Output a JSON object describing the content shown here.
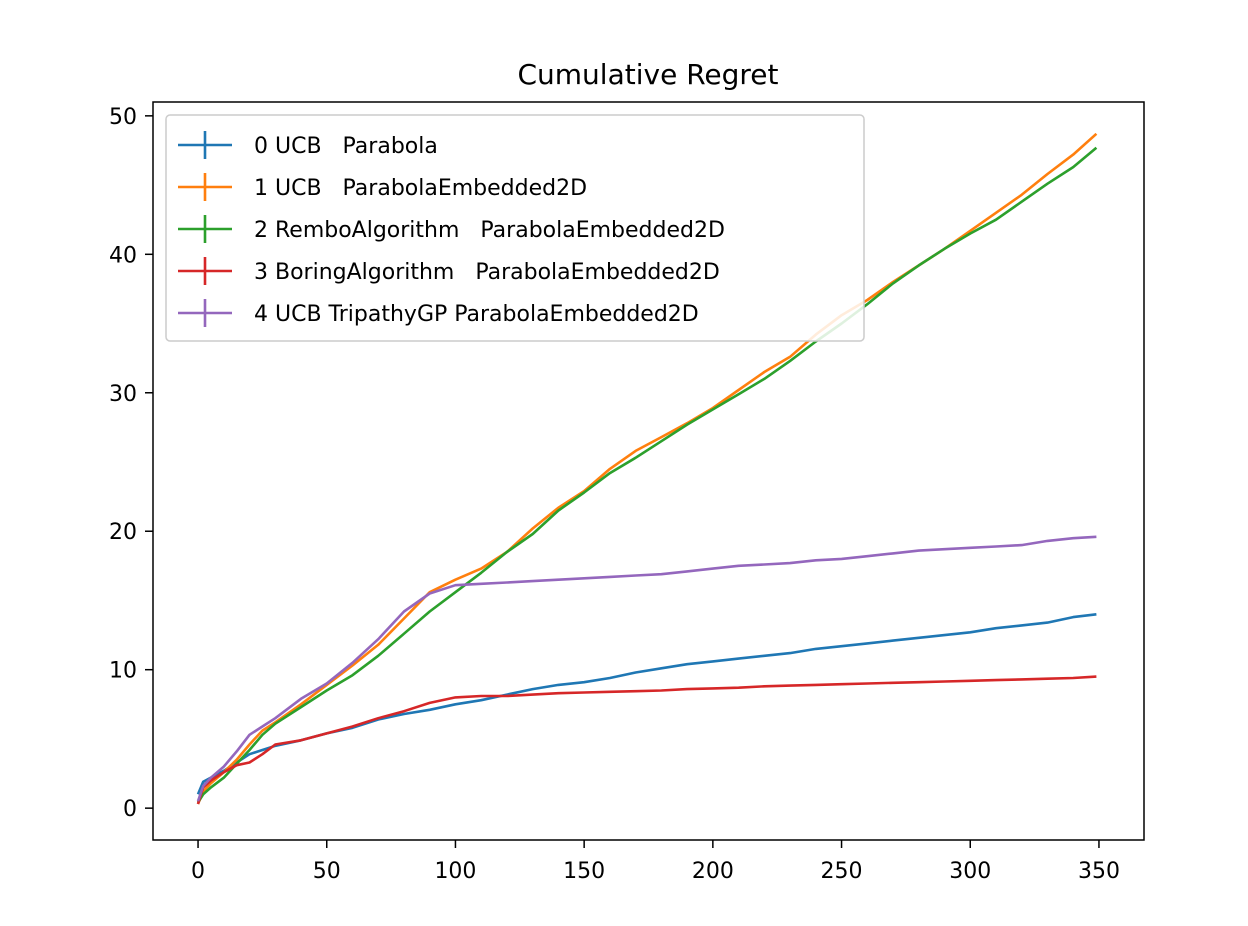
{
  "chart_data": {
    "type": "line",
    "title": "Cumulative Regret",
    "xlabel": "",
    "ylabel": "",
    "xlim": [
      -17.5,
      367.5
    ],
    "ylim": [
      -2.3,
      51.0
    ],
    "xticks": [
      0,
      50,
      100,
      150,
      200,
      250,
      300,
      350
    ],
    "yticks": [
      0,
      10,
      20,
      30,
      40,
      50
    ],
    "grid": false,
    "legend_position": "top-left",
    "series": [
      {
        "name": "0 UCB   Parabola",
        "color": "#1f77b4",
        "x": [
          0,
          2,
          5,
          10,
          15,
          20,
          25,
          30,
          40,
          50,
          60,
          70,
          80,
          90,
          100,
          110,
          120,
          130,
          140,
          150,
          160,
          170,
          180,
          190,
          200,
          210,
          220,
          230,
          240,
          250,
          260,
          270,
          280,
          290,
          300,
          310,
          320,
          330,
          340,
          349
        ],
        "y": [
          1.0,
          1.9,
          2.2,
          2.7,
          3.3,
          3.9,
          4.2,
          4.5,
          4.9,
          5.4,
          5.8,
          6.4,
          6.8,
          7.1,
          7.5,
          7.8,
          8.2,
          8.6,
          8.9,
          9.1,
          9.4,
          9.8,
          10.1,
          10.4,
          10.6,
          10.8,
          11.0,
          11.2,
          11.5,
          11.7,
          11.9,
          12.1,
          12.3,
          12.5,
          12.7,
          13.0,
          13.2,
          13.4,
          13.8,
          14.0
        ]
      },
      {
        "name": "1 UCB   ParabolaEmbedded2D",
        "color": "#ff7f0e",
        "x": [
          0,
          2,
          5,
          10,
          15,
          20,
          25,
          30,
          40,
          50,
          60,
          70,
          80,
          90,
          100,
          110,
          120,
          130,
          140,
          150,
          160,
          170,
          180,
          190,
          200,
          210,
          220,
          230,
          240,
          250,
          260,
          270,
          280,
          290,
          300,
          310,
          320,
          330,
          340,
          349
        ],
        "y": [
          0.3,
          1.2,
          1.8,
          2.6,
          3.5,
          4.6,
          5.6,
          6.2,
          7.5,
          8.9,
          10.3,
          11.8,
          13.7,
          15.6,
          16.5,
          17.3,
          18.5,
          20.2,
          21.7,
          22.9,
          24.5,
          25.8,
          26.8,
          27.8,
          28.9,
          30.2,
          31.5,
          32.6,
          34.2,
          35.6,
          36.7,
          38.0,
          39.2,
          40.4,
          41.7,
          43.0,
          44.3,
          45.8,
          47.2,
          48.7
        ]
      },
      {
        "name": "2 RemboAlgorithm   ParabolaEmbedded2D",
        "color": "#2ca02c",
        "x": [
          0,
          2,
          5,
          10,
          15,
          20,
          25,
          30,
          40,
          50,
          60,
          70,
          80,
          90,
          100,
          110,
          120,
          130,
          140,
          150,
          160,
          170,
          180,
          190,
          200,
          210,
          220,
          230,
          240,
          250,
          260,
          270,
          280,
          290,
          300,
          310,
          320,
          330,
          340,
          349
        ],
        "y": [
          0.4,
          1.0,
          1.5,
          2.2,
          3.2,
          4.2,
          5.3,
          6.1,
          7.3,
          8.5,
          9.6,
          11.0,
          12.6,
          14.2,
          15.6,
          17.0,
          18.5,
          19.8,
          21.5,
          22.8,
          24.2,
          25.3,
          26.5,
          27.7,
          28.8,
          29.9,
          31.0,
          32.3,
          33.7,
          35.0,
          36.4,
          37.9,
          39.2,
          40.4,
          41.5,
          42.5,
          43.8,
          45.1,
          46.3,
          47.7
        ]
      },
      {
        "name": "3 BoringAlgorithm   ParabolaEmbedded2D",
        "color": "#d62728",
        "x": [
          0,
          2,
          5,
          10,
          15,
          20,
          25,
          30,
          40,
          50,
          60,
          70,
          80,
          90,
          100,
          110,
          120,
          130,
          140,
          150,
          160,
          170,
          180,
          190,
          200,
          210,
          220,
          230,
          240,
          250,
          260,
          270,
          280,
          290,
          300,
          310,
          320,
          330,
          340,
          349
        ],
        "y": [
          0.3,
          1.5,
          2.0,
          2.6,
          3.1,
          3.3,
          3.9,
          4.6,
          4.9,
          5.4,
          5.9,
          6.5,
          7.0,
          7.6,
          8.0,
          8.1,
          8.1,
          8.2,
          8.3,
          8.35,
          8.4,
          8.45,
          8.5,
          8.6,
          8.65,
          8.7,
          8.8,
          8.85,
          8.9,
          8.95,
          9.0,
          9.05,
          9.1,
          9.15,
          9.2,
          9.25,
          9.3,
          9.35,
          9.4,
          9.5
        ]
      },
      {
        "name": "4 UCB TripathyGP ParabolaEmbedded2D",
        "color": "#9467bd",
        "x": [
          0,
          2,
          5,
          10,
          15,
          20,
          25,
          30,
          40,
          50,
          60,
          70,
          80,
          90,
          100,
          110,
          120,
          130,
          140,
          150,
          160,
          170,
          180,
          190,
          200,
          210,
          220,
          230,
          240,
          250,
          260,
          270,
          280,
          290,
          300,
          310,
          320,
          330,
          340,
          349
        ],
        "y": [
          0.5,
          1.6,
          2.2,
          3.0,
          4.1,
          5.3,
          5.9,
          6.5,
          7.9,
          9.0,
          10.5,
          12.2,
          14.2,
          15.5,
          16.1,
          16.2,
          16.3,
          16.4,
          16.5,
          16.6,
          16.7,
          16.8,
          16.9,
          17.1,
          17.3,
          17.5,
          17.6,
          17.7,
          17.9,
          18.0,
          18.2,
          18.4,
          18.6,
          18.7,
          18.8,
          18.9,
          19.0,
          19.3,
          19.5,
          19.6
        ]
      }
    ]
  }
}
